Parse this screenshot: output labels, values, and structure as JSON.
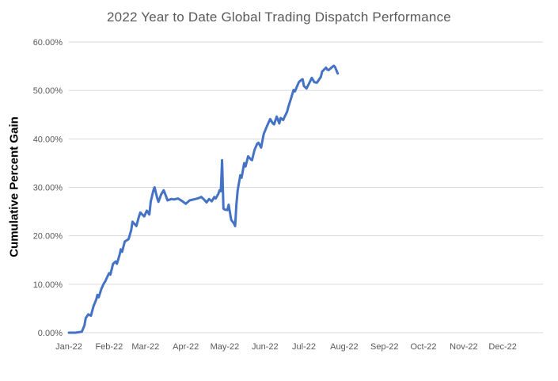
{
  "title": "2022 Year to Date Global Trading Dispatch Performance",
  "chart_data": {
    "type": "line",
    "title": "2022 Year to Date Global Trading Dispatch Performance",
    "xlabel": "",
    "ylabel": "Cumulative Percent Gain",
    "legend_position": "none",
    "grid": "horizontal",
    "line_color": "#4472C4",
    "gridline_color": "#D9D9D9",
    "tick_text_color": "#595959",
    "title_text_color": "#595959",
    "ylim": [
      0,
      60
    ],
    "y_ticks": [
      {
        "value": 0,
        "label": "0.00%"
      },
      {
        "value": 10,
        "label": "10.00%"
      },
      {
        "value": 20,
        "label": "20.00%"
      },
      {
        "value": 30,
        "label": "30.00%"
      },
      {
        "value": 40,
        "label": "40.00%"
      },
      {
        "value": 50,
        "label": "50.00%"
      },
      {
        "value": 60,
        "label": "60.00%"
      }
    ],
    "x_ticks": [
      {
        "label": "Jan-22",
        "day": 1
      },
      {
        "label": "Feb-22",
        "day": 32
      },
      {
        "label": "Mar-22",
        "day": 60
      },
      {
        "label": "Apr-22",
        "day": 91
      },
      {
        "label": "May-22",
        "day": 121
      },
      {
        "label": "Jun-22",
        "day": 152
      },
      {
        "label": "Jul-22",
        "day": 182
      },
      {
        "label": "Aug-22",
        "day": 213
      },
      {
        "label": "Sep-22",
        "day": 244
      },
      {
        "label": "Oct-22",
        "day": 274
      },
      {
        "label": "Nov-22",
        "day": 305
      },
      {
        "label": "Dec-22",
        "day": 335
      }
    ],
    "x_range_days": [
      1,
      366
    ],
    "series": [
      {
        "name": "Cumulative Percent Gain",
        "points_day_value": [
          [
            1,
            0
          ],
          [
            6,
            0
          ],
          [
            11,
            0.2
          ],
          [
            13,
            1.5
          ],
          [
            14,
            3.0
          ],
          [
            16,
            3.8
          ],
          [
            18,
            3.5
          ],
          [
            20,
            5.5
          ],
          [
            22,
            6.8
          ],
          [
            23,
            7.8
          ],
          [
            24,
            7.3
          ],
          [
            26,
            9.0
          ],
          [
            28,
            10.2
          ],
          [
            29,
            10.6
          ],
          [
            30,
            11.2
          ],
          [
            32,
            12.3
          ],
          [
            33,
            12.0
          ],
          [
            35,
            14.2
          ],
          [
            37,
            14.7
          ],
          [
            38,
            14.2
          ],
          [
            40,
            16.0
          ],
          [
            41,
            17.2
          ],
          [
            42,
            16.7
          ],
          [
            44,
            18.8
          ],
          [
            47,
            19.3
          ],
          [
            49,
            21.2
          ],
          [
            50,
            22.9
          ],
          [
            53,
            22.0
          ],
          [
            55,
            24.0
          ],
          [
            56,
            24.8
          ],
          [
            59,
            24.0
          ],
          [
            61,
            25.2
          ],
          [
            63,
            24.4
          ],
          [
            64,
            27.0
          ],
          [
            66,
            29.3
          ],
          [
            67,
            30.0
          ],
          [
            69,
            27.8
          ],
          [
            70,
            27.0
          ],
          [
            72,
            28.5
          ],
          [
            74,
            29.4
          ],
          [
            76,
            28.0
          ],
          [
            77,
            27.3
          ],
          [
            80,
            27.6
          ],
          [
            82,
            27.5
          ],
          [
            85,
            27.7
          ],
          [
            88,
            27.2
          ],
          [
            91,
            26.6
          ],
          [
            94,
            27.3
          ],
          [
            97,
            27.5
          ],
          [
            100,
            27.7
          ],
          [
            103,
            28.0
          ],
          [
            105,
            27.5
          ],
          [
            107,
            26.9
          ],
          [
            109,
            27.6
          ],
          [
            111,
            27.1
          ],
          [
            113,
            28.0
          ],
          [
            114,
            27.7
          ],
          [
            116,
            28.6
          ],
          [
            117,
            29.4
          ],
          [
            118,
            29.2
          ],
          [
            119,
            35.6
          ],
          [
            120,
            25.6
          ],
          [
            121,
            25.4
          ],
          [
            123,
            25.3
          ],
          [
            124,
            26.4
          ],
          [
            126,
            23.3
          ],
          [
            128,
            22.6
          ],
          [
            129,
            22.0
          ],
          [
            130,
            26.5
          ],
          [
            131,
            29.4
          ],
          [
            133,
            32.5
          ],
          [
            134,
            32.0
          ],
          [
            136,
            35.0
          ],
          [
            137,
            34.3
          ],
          [
            139,
            36.4
          ],
          [
            141,
            35.8
          ],
          [
            142,
            35.6
          ],
          [
            144,
            37.8
          ],
          [
            146,
            39.0
          ],
          [
            147,
            39.2
          ],
          [
            149,
            38.2
          ],
          [
            151,
            41.0
          ],
          [
            153,
            42.3
          ],
          [
            155,
            43.5
          ],
          [
            156,
            44.1
          ],
          [
            158,
            43.2
          ],
          [
            159,
            43.0
          ],
          [
            161,
            44.6
          ],
          [
            163,
            43.2
          ],
          [
            164,
            44.3
          ],
          [
            166,
            43.9
          ],
          [
            167,
            44.5
          ],
          [
            169,
            45.6
          ],
          [
            170,
            46.6
          ],
          [
            172,
            48.3
          ],
          [
            174,
            50.1
          ],
          [
            175,
            49.8
          ],
          [
            178,
            51.7
          ],
          [
            180,
            52.2
          ],
          [
            181,
            52.3
          ],
          [
            182,
            50.9
          ],
          [
            184,
            50.4
          ],
          [
            187,
            52.0
          ],
          [
            188,
            52.6
          ],
          [
            190,
            51.7
          ],
          [
            192,
            51.6
          ],
          [
            195,
            52.8
          ],
          [
            196,
            53.9
          ],
          [
            199,
            54.7
          ],
          [
            200,
            54.3
          ],
          [
            201,
            54.2
          ],
          [
            204,
            54.9
          ],
          [
            205,
            55.1
          ],
          [
            206,
            54.8
          ],
          [
            208,
            53.5
          ]
        ]
      }
    ]
  }
}
